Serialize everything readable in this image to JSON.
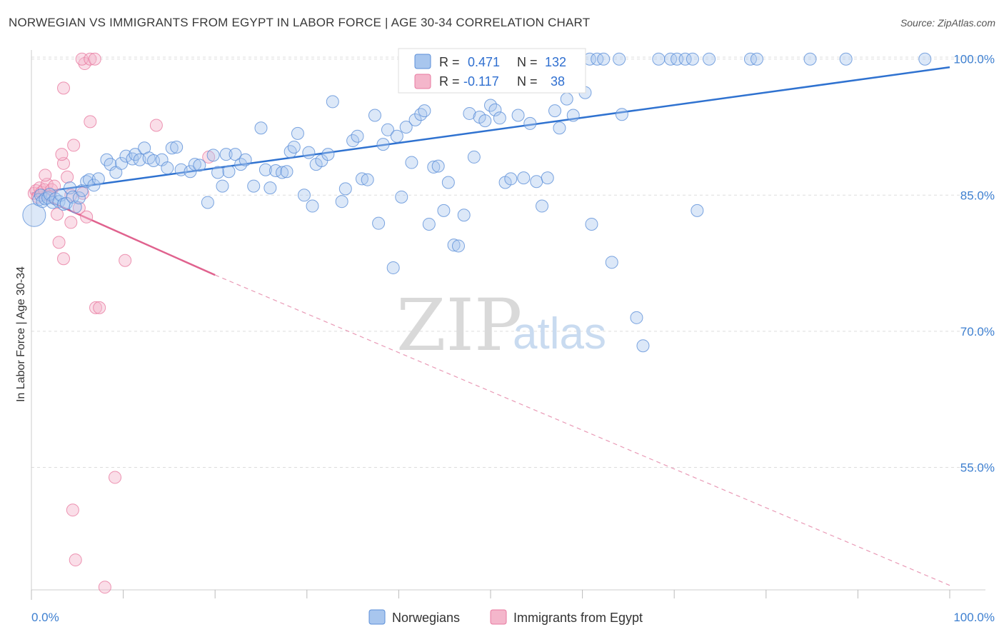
{
  "header": {
    "title": "NORWEGIAN VS IMMIGRANTS FROM EGYPT IN LABOR FORCE | AGE 30-34 CORRELATION CHART",
    "source": "Source: ZipAtlas.com"
  },
  "legend": {
    "stats": [
      {
        "r_label": "R =",
        "r_value": "0.471",
        "n_label": "N =",
        "n_value": "132"
      },
      {
        "r_label": "R =",
        "r_value": "-0.117",
        "n_label": "N =",
        "n_value": "38"
      }
    ],
    "series_labels": [
      "Norwegians",
      "Immigrants from Egypt"
    ]
  },
  "watermark": {
    "zip": "ZIP",
    "atlas": "atlas"
  },
  "colors": {
    "norwegians": "#5b8fd8",
    "norwegians_fill": "#a8c6ee",
    "egypt": "#e87aa0",
    "egypt_fill": "#f4b6cb",
    "grid": "#dddddd",
    "axis_tick": "#3d7fd0"
  },
  "chart_data": {
    "type": "scatter",
    "title": "NORWEGIAN VS IMMIGRANTS FROM EGYPT IN LABOR FORCE | AGE 30-34 CORRELATION CHART",
    "xlabel": "",
    "ylabel": "In Labor Force | Age 30-34",
    "xlim": [
      0,
      100
    ],
    "ylim": [
      41.5,
      101
    ],
    "x_tick_labels": [
      "0.0%",
      "100.0%"
    ],
    "y_ticks": [
      55,
      70,
      85,
      100
    ],
    "y_tick_labels": [
      "55.0%",
      "70.0%",
      "85.0%",
      "100.0%"
    ],
    "series": [
      {
        "name": "Norwegians",
        "r": 0.471,
        "n": 132,
        "trend": {
          "x": [
            0,
            100
          ],
          "y": [
            85.2,
            99.1
          ],
          "style": "solid"
        },
        "points": [
          [
            0.3,
            82.8
          ],
          [
            0.8,
            84.5
          ],
          [
            1.0,
            85.0
          ],
          [
            1.2,
            84.3
          ],
          [
            1.5,
            84.6
          ],
          [
            1.8,
            84.7
          ],
          [
            2.0,
            85.1
          ],
          [
            2.3,
            84.2
          ],
          [
            2.6,
            84.6
          ],
          [
            3.0,
            84.3
          ],
          [
            3.2,
            85.0
          ],
          [
            3.5,
            84.0
          ],
          [
            3.8,
            84.1
          ],
          [
            4.2,
            85.8
          ],
          [
            4.5,
            84.8
          ],
          [
            4.8,
            83.7
          ],
          [
            5.2,
            84.7
          ],
          [
            5.5,
            85.5
          ],
          [
            6.0,
            86.5
          ],
          [
            6.3,
            86.7
          ],
          [
            6.8,
            86.1
          ],
          [
            7.3,
            86.8
          ],
          [
            8.2,
            88.9
          ],
          [
            8.6,
            88.4
          ],
          [
            9.2,
            87.5
          ],
          [
            9.8,
            88.5
          ],
          [
            10.3,
            89.3
          ],
          [
            11.0,
            89.0
          ],
          [
            11.3,
            89.5
          ],
          [
            11.8,
            88.9
          ],
          [
            12.3,
            90.2
          ],
          [
            12.8,
            89.1
          ],
          [
            13.3,
            88.8
          ],
          [
            14.2,
            88.9
          ],
          [
            14.8,
            88.0
          ],
          [
            15.3,
            90.2
          ],
          [
            15.8,
            90.3
          ],
          [
            16.3,
            87.8
          ],
          [
            17.3,
            87.6
          ],
          [
            17.8,
            88.4
          ],
          [
            18.3,
            88.3
          ],
          [
            19.2,
            84.2
          ],
          [
            19.8,
            89.4
          ],
          [
            20.3,
            87.5
          ],
          [
            20.8,
            86.0
          ],
          [
            21.2,
            89.5
          ],
          [
            21.5,
            87.6
          ],
          [
            22.2,
            89.5
          ],
          [
            22.8,
            88.4
          ],
          [
            23.3,
            88.9
          ],
          [
            24.2,
            86.0
          ],
          [
            25.0,
            92.4
          ],
          [
            25.5,
            87.8
          ],
          [
            26.0,
            85.8
          ],
          [
            26.6,
            87.7
          ],
          [
            27.3,
            87.5
          ],
          [
            27.8,
            87.6
          ],
          [
            28.2,
            89.8
          ],
          [
            28.6,
            90.3
          ],
          [
            29.0,
            91.8
          ],
          [
            29.7,
            85.0
          ],
          [
            30.2,
            89.7
          ],
          [
            30.6,
            83.8
          ],
          [
            31.0,
            88.4
          ],
          [
            31.6,
            88.8
          ],
          [
            32.3,
            89.5
          ],
          [
            32.8,
            95.3
          ],
          [
            33.8,
            84.3
          ],
          [
            34.2,
            85.7
          ],
          [
            35.0,
            91.0
          ],
          [
            35.5,
            91.5
          ],
          [
            36.0,
            86.8
          ],
          [
            36.6,
            86.7
          ],
          [
            37.4,
            93.8
          ],
          [
            37.8,
            81.9
          ],
          [
            38.3,
            90.6
          ],
          [
            38.8,
            92.2
          ],
          [
            39.4,
            77.0
          ],
          [
            39.8,
            91.5
          ],
          [
            40.3,
            84.8
          ],
          [
            40.8,
            92.5
          ],
          [
            41.4,
            88.6
          ],
          [
            41.8,
            93.3
          ],
          [
            42.4,
            93.9
          ],
          [
            42.8,
            94.3
          ],
          [
            43.3,
            81.8
          ],
          [
            43.8,
            88.1
          ],
          [
            44.3,
            88.2
          ],
          [
            44.9,
            83.3
          ],
          [
            45.4,
            86.4
          ],
          [
            46.0,
            79.5
          ],
          [
            46.5,
            79.4
          ],
          [
            47.1,
            82.8
          ],
          [
            47.7,
            94.0
          ],
          [
            48.2,
            89.2
          ],
          [
            48.8,
            93.6
          ],
          [
            49.4,
            93.2
          ],
          [
            50.0,
            94.9
          ],
          [
            50.5,
            94.4
          ],
          [
            51.0,
            93.5
          ],
          [
            51.6,
            86.4
          ],
          [
            52.2,
            86.8
          ],
          [
            53.0,
            93.8
          ],
          [
            53.6,
            86.9
          ],
          [
            54.3,
            92.9
          ],
          [
            55.0,
            86.5
          ],
          [
            55.6,
            83.8
          ],
          [
            56.2,
            86.9
          ],
          [
            57.0,
            94.3
          ],
          [
            57.5,
            92.4
          ],
          [
            58.3,
            95.6
          ],
          [
            59.0,
            93.8
          ],
          [
            60.3,
            96.3
          ],
          [
            61.0,
            81.8
          ],
          [
            60.8,
            100.0
          ],
          [
            61.6,
            100.0
          ],
          [
            62.3,
            100.0
          ],
          [
            63.2,
            77.6
          ],
          [
            64.3,
            93.9
          ],
          [
            64.0,
            100.0
          ],
          [
            65.9,
            71.5
          ],
          [
            66.6,
            68.4
          ],
          [
            68.3,
            100.0
          ],
          [
            69.6,
            100.0
          ],
          [
            70.3,
            100.0
          ],
          [
            71.2,
            100.0
          ],
          [
            72.0,
            100.0
          ],
          [
            73.8,
            100.0
          ],
          [
            72.5,
            83.3
          ],
          [
            78.3,
            100.0
          ],
          [
            79.0,
            100.0
          ],
          [
            84.8,
            100.0
          ],
          [
            88.7,
            100.0
          ],
          [
            97.3,
            100.0
          ]
        ]
      },
      {
        "name": "Immigrants from Egypt",
        "r": -0.117,
        "n": 38,
        "trend": {
          "x": [
            0,
            20
          ],
          "y": [
            85.2,
            76.2
          ],
          "extended": {
            "x": [
              20,
              100
            ],
            "y": [
              76.2,
              42.0
            ]
          },
          "style": "solid-then-dashed"
        },
        "points": [
          [
            0.3,
            85.2
          ],
          [
            0.5,
            85.5
          ],
          [
            0.7,
            84.8
          ],
          [
            0.9,
            85.8
          ],
          [
            1.1,
            85.3
          ],
          [
            1.4,
            85.6
          ],
          [
            1.7,
            86.2
          ],
          [
            2.0,
            84.9
          ],
          [
            2.2,
            85.6
          ],
          [
            1.5,
            87.2
          ],
          [
            2.5,
            86.0
          ],
          [
            3.5,
            88.5
          ],
          [
            2.8,
            82.9
          ],
          [
            3.0,
            79.8
          ],
          [
            3.5,
            78.0
          ],
          [
            3.9,
            87.0
          ],
          [
            4.3,
            82.0
          ],
          [
            4.6,
            90.5
          ],
          [
            5.2,
            83.6
          ],
          [
            5.6,
            85.2
          ],
          [
            3.5,
            96.8
          ],
          [
            3.3,
            89.5
          ],
          [
            6.0,
            82.6
          ],
          [
            6.4,
            93.1
          ],
          [
            5.8,
            99.5
          ],
          [
            5.5,
            100.0
          ],
          [
            6.4,
            100.0
          ],
          [
            6.9,
            100.0
          ],
          [
            7.0,
            72.6
          ],
          [
            7.4,
            72.6
          ],
          [
            10.2,
            77.8
          ],
          [
            13.6,
            92.7
          ],
          [
            9.1,
            53.9
          ],
          [
            4.5,
            50.3
          ],
          [
            4.8,
            44.8
          ],
          [
            8.0,
            41.8
          ],
          [
            19.3,
            89.2
          ],
          [
            4.3,
            85.0
          ]
        ]
      }
    ]
  }
}
